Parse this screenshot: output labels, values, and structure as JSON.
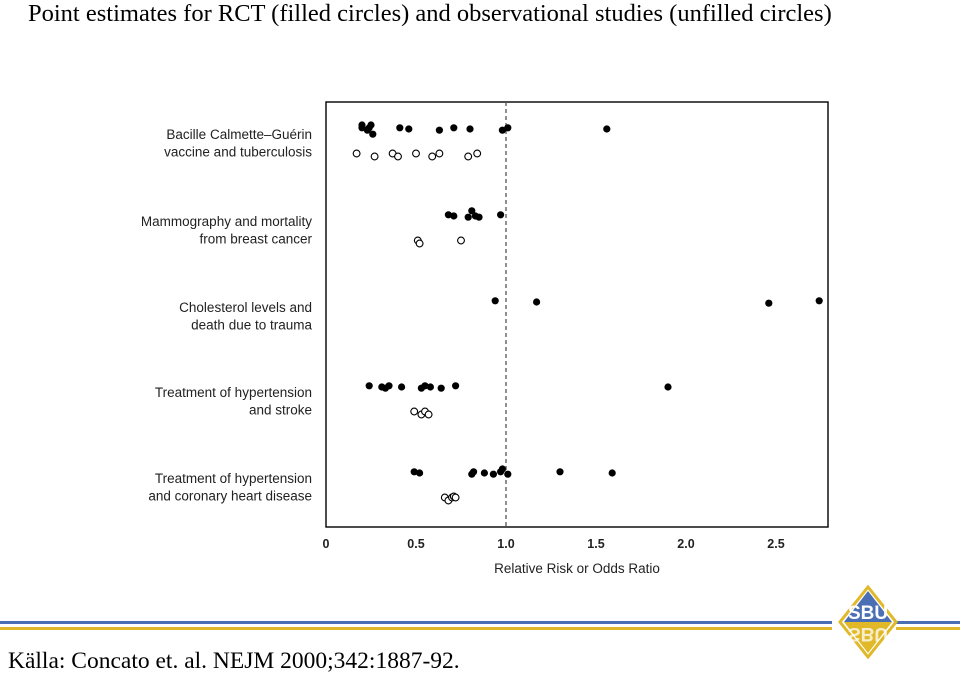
{
  "title": "Point estimates for RCT (filled circles) and observational studies (unfilled circles)",
  "source": "Källa: Concato et. al. NEJM 2000;342:1887-92.",
  "logo": {
    "text": "SBU",
    "colors": {
      "blue": "#4a6fb5",
      "yellow": "#e0b828"
    }
  },
  "chart_data": {
    "type": "scatter",
    "xlabel": "Relative Risk or Odds Ratio",
    "xlim": [
      0,
      2.8
    ],
    "xticks": [
      "0",
      "0.5",
      "1.0",
      "1.5",
      "2.0",
      "2.5"
    ],
    "xtick_values": [
      0,
      0.5,
      1.0,
      1.5,
      2.0,
      2.5
    ],
    "reference_line": 1.0,
    "legend": "none",
    "grid": false,
    "groups": [
      {
        "label_lines": [
          "Bacille Calmette–Guérin",
          "vaccine and tuberculosis"
        ],
        "rct": [
          0.2,
          0.2,
          0.23,
          0.24,
          0.25,
          0.26,
          0.41,
          0.46,
          0.63,
          0.71,
          0.8,
          0.98,
          1.01,
          1.56
        ],
        "observational": [
          0.17,
          0.27,
          0.37,
          0.4,
          0.5,
          0.59,
          0.63,
          0.79,
          0.84
        ]
      },
      {
        "label_lines": [
          "Mammography and mortality",
          "from breast cancer"
        ],
        "rct": [
          0.68,
          0.71,
          0.79,
          0.81,
          0.83,
          0.85,
          0.97
        ],
        "observational": [
          0.51,
          0.52,
          0.75
        ]
      },
      {
        "label_lines": [
          "Cholesterol levels and",
          "death due to trauma"
        ],
        "rct": [
          0.94,
          1.17,
          2.46,
          2.74
        ],
        "observational": []
      },
      {
        "label_lines": [
          "Treatment of hypertension",
          "and stroke"
        ],
        "rct": [
          0.24,
          0.31,
          0.33,
          0.35,
          0.42,
          0.53,
          0.55,
          0.58,
          0.64,
          0.72,
          1.9
        ],
        "observational": [
          0.49,
          0.53,
          0.55,
          0.57
        ]
      },
      {
        "label_lines": [
          "Treatment of hypertension",
          "and coronary heart disease"
        ],
        "rct": [
          0.49,
          0.52,
          0.81,
          0.82,
          0.88,
          0.93,
          0.97,
          0.98,
          1.01,
          1.3,
          1.59
        ],
        "observational": [
          0.66,
          0.68,
          0.7,
          0.71,
          0.72
        ]
      }
    ]
  }
}
